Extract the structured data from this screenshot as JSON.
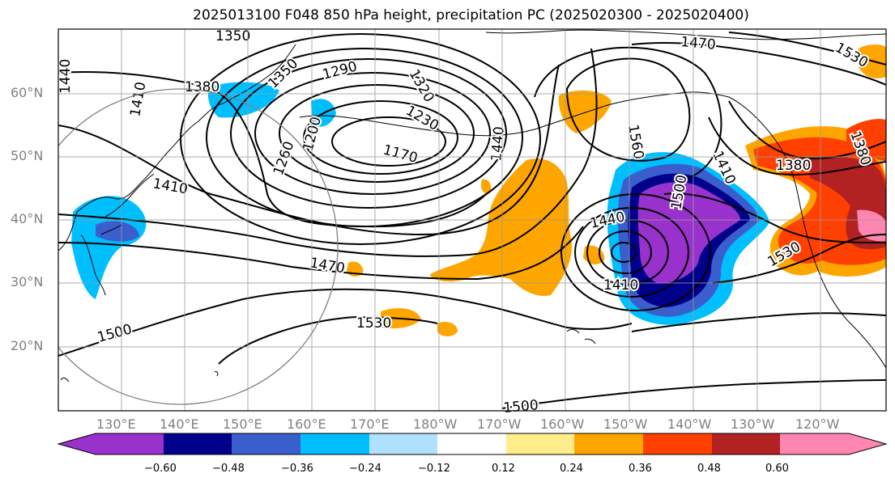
{
  "title": "2025013100 F048 850 hPa height, precipitation PC (2025020300 - 2025020400)",
  "lat_labels": [
    "60°N",
    "50°N",
    "40°N",
    "30°N",
    "20°N"
  ],
  "lon_labels": [
    "130°E",
    "140°E",
    "150°E",
    "160°E",
    "170°E",
    "180°W",
    "170°W",
    "160°W",
    "150°W",
    "140°W",
    "130°W",
    "120°W"
  ],
  "contour_labels": [
    "1350",
    "1380",
    "1410",
    "1440",
    "1290",
    "1320",
    "1350",
    "1230",
    "1200",
    "1260",
    "1170",
    "1410",
    "1470",
    "1500",
    "1530",
    "1440",
    "1470",
    "1440",
    "1530",
    "1500",
    "1560",
    "1410",
    "1380",
    "1410",
    "1380",
    "1500",
    "1530"
  ],
  "colorbar": {
    "colors": [
      "#9932cc",
      "#00008b",
      "#3a5fcd",
      "#00bfff",
      "#b0e2ff",
      "#ffffff",
      "#ffec8b",
      "#ffa500",
      "#ff4000",
      "#b22222",
      "#ff86b0"
    ],
    "tick_labels": [
      "−0.60",
      "−0.48",
      "−0.36",
      "−0.24",
      "−0.12",
      "0.12",
      "0.24",
      "0.36",
      "0.48",
      "0.60"
    ]
  }
}
